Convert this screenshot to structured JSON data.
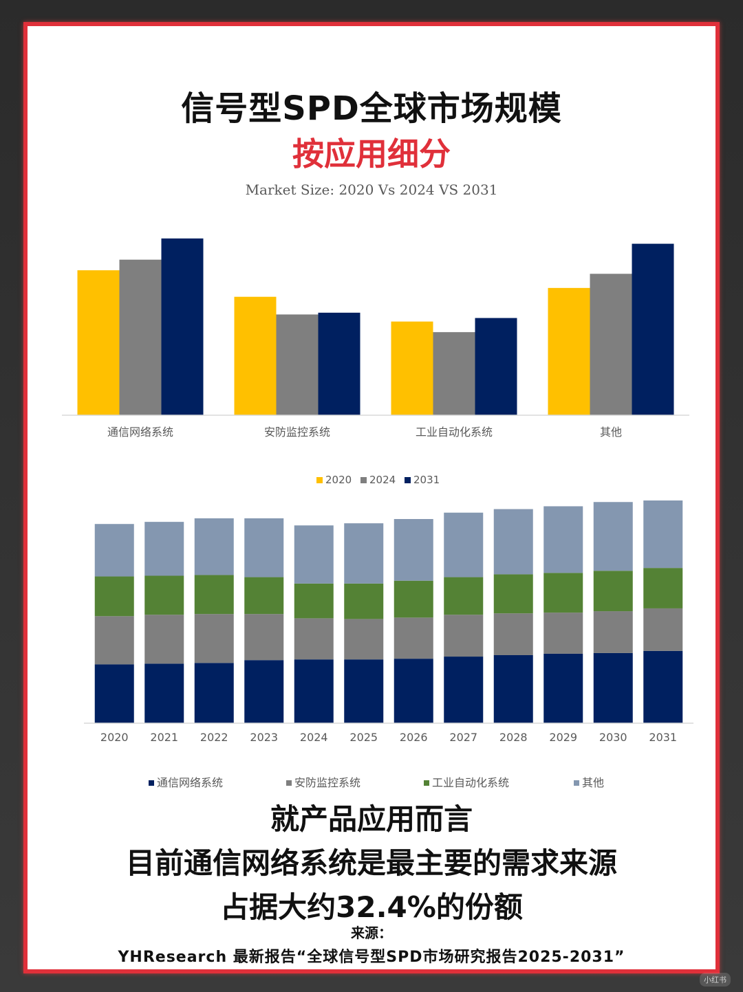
{
  "header": {
    "title": "信号型SPD全球市场规模",
    "subtitle": "按应用细分",
    "chart_caption": "Market Size: 2020 Vs 2024 VS 2031"
  },
  "colors": {
    "frame_border": "#e0303a",
    "y2020": "#ffc000",
    "y2024": "#7f7f7f",
    "y2031": "#002060",
    "seg_comm": "#002060",
    "seg_security": "#7f7f7f",
    "seg_industrial": "#548235",
    "seg_other": "#8497b0"
  },
  "chart_data": [
    {
      "type": "bar",
      "title": "Market Size: 2020 Vs 2024 VS 2031",
      "categories": [
        "通信网络系统",
        "安防监控系统",
        "工业自动化系统",
        "其他"
      ],
      "series": [
        {
          "name": "2020",
          "values": [
            82,
            67,
            53,
            72
          ]
        },
        {
          "name": "2024",
          "values": [
            88,
            57,
            47,
            80
          ]
        },
        {
          "name": "2031",
          "values": [
            100,
            58,
            55,
            97
          ]
        }
      ],
      "ylim": [
        0,
        105
      ],
      "legend": "bottom",
      "grid": false
    },
    {
      "type": "bar",
      "stacked": true,
      "categories": [
        "2020",
        "2021",
        "2022",
        "2023",
        "2024",
        "2025",
        "2026",
        "2027",
        "2028",
        "2029",
        "2030",
        "2031"
      ],
      "series": [
        {
          "name": "通信网络系统",
          "values": [
            83,
            84,
            85,
            89,
            90,
            90,
            91,
            94,
            96,
            98,
            99,
            102
          ]
        },
        {
          "name": "安防监控系统",
          "values": [
            68,
            69,
            69,
            65,
            58,
            57,
            58,
            59,
            59,
            58,
            59,
            60
          ]
        },
        {
          "name": "工业自动化系统",
          "values": [
            56,
            55,
            55,
            52,
            49,
            50,
            52,
            53,
            55,
            56,
            57,
            57
          ]
        },
        {
          "name": "其他",
          "values": [
            74,
            76,
            80,
            83,
            82,
            85,
            87,
            91,
            92,
            94,
            97,
            100
          ]
        }
      ],
      "ylim": [
        0,
        320
      ],
      "legend": "bottom",
      "grid": false
    }
  ],
  "bottom": {
    "line1": "就产品应用而言",
    "line2": "目前通信网络系统是最主要的需求来源",
    "line3": "占据大约32.4%的份额",
    "source_label": "来源：",
    "source_text": "YHResearch 最新报告“全球信号型SPD市场研究报告2025-2031”"
  },
  "watermark": "小红书"
}
